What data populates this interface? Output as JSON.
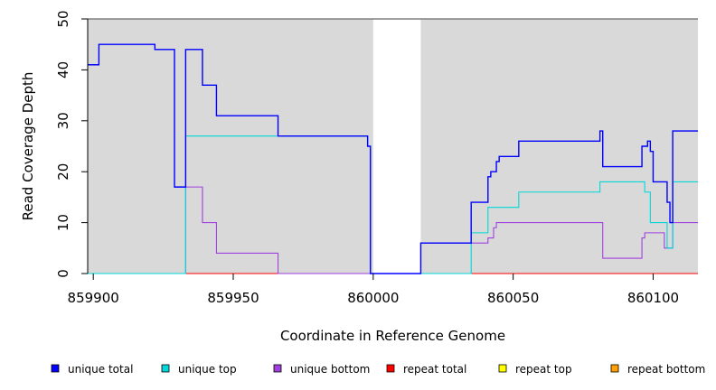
{
  "chart_data": {
    "type": "line",
    "title": "",
    "xlabel": "Coordinate in Reference Genome",
    "ylabel": "Read Coverage Depth",
    "xlim": [
      859898,
      860116
    ],
    "ylim": [
      0,
      50
    ],
    "x_ticks": [
      859900,
      859950,
      860000,
      860050,
      860100
    ],
    "y_ticks": [
      0,
      10,
      20,
      30,
      40,
      50
    ],
    "grid": false,
    "covered_regions": [
      [
        859898,
        860000
      ],
      [
        860017,
        860116
      ]
    ],
    "background_color": "#d9d9d9",
    "legend_position": "bottom",
    "series": [
      {
        "name": "unique total",
        "color": "#0000ff",
        "step_points": [
          [
            859898,
            41
          ],
          [
            859902,
            45
          ],
          [
            859922,
            44
          ],
          [
            859929,
            17
          ],
          [
            859933,
            44
          ],
          [
            859939,
            37
          ],
          [
            859944,
            31
          ],
          [
            859966,
            27
          ],
          [
            859998,
            25
          ],
          [
            859999,
            0
          ],
          [
            860017,
            6
          ],
          [
            860035,
            14
          ],
          [
            860041,
            19
          ],
          [
            860042,
            20
          ],
          [
            860044,
            22
          ],
          [
            860045,
            23
          ],
          [
            860052,
            26
          ],
          [
            860081,
            28
          ],
          [
            860082,
            21
          ],
          [
            860096,
            25
          ],
          [
            860098,
            26
          ],
          [
            860099,
            24
          ],
          [
            860100,
            18
          ],
          [
            860105,
            14
          ],
          [
            860106,
            10
          ],
          [
            860107,
            28
          ],
          [
            860116,
            28
          ]
        ]
      },
      {
        "name": "unique top",
        "color": "#00d8d8",
        "step_points": [
          [
            859898,
            0
          ],
          [
            859933,
            27
          ],
          [
            859998,
            25
          ],
          [
            859999,
            0
          ],
          [
            860035,
            8
          ],
          [
            860041,
            13
          ],
          [
            860052,
            16
          ],
          [
            860081,
            18
          ],
          [
            860097,
            16
          ],
          [
            860099,
            10
          ],
          [
            860105,
            5
          ],
          [
            860107,
            18
          ],
          [
            860116,
            18
          ]
        ]
      },
      {
        "name": "unique bottom",
        "color": "#a040e0",
        "step_points": [
          [
            859898,
            0
          ],
          [
            859933,
            17
          ],
          [
            859939,
            10
          ],
          [
            859944,
            4
          ],
          [
            859966,
            0
          ],
          [
            860017,
            6
          ],
          [
            860041,
            7
          ],
          [
            860043,
            9
          ],
          [
            860044,
            10
          ],
          [
            860082,
            3
          ],
          [
            860096,
            7
          ],
          [
            860097,
            8
          ],
          [
            860104,
            5
          ],
          [
            860107,
            10
          ],
          [
            860116,
            10
          ]
        ]
      },
      {
        "name": "repeat total",
        "color": "#ff0000",
        "step_points": [
          [
            859898,
            0
          ],
          [
            860116,
            0
          ]
        ]
      },
      {
        "name": "repeat top",
        "color": "#ffff00",
        "step_points": [
          [
            859898,
            0
          ],
          [
            860116,
            0
          ]
        ]
      },
      {
        "name": "repeat bottom",
        "color": "#ffa000",
        "step_points": [
          [
            859898,
            0
          ],
          [
            860116,
            0
          ]
        ]
      }
    ]
  }
}
